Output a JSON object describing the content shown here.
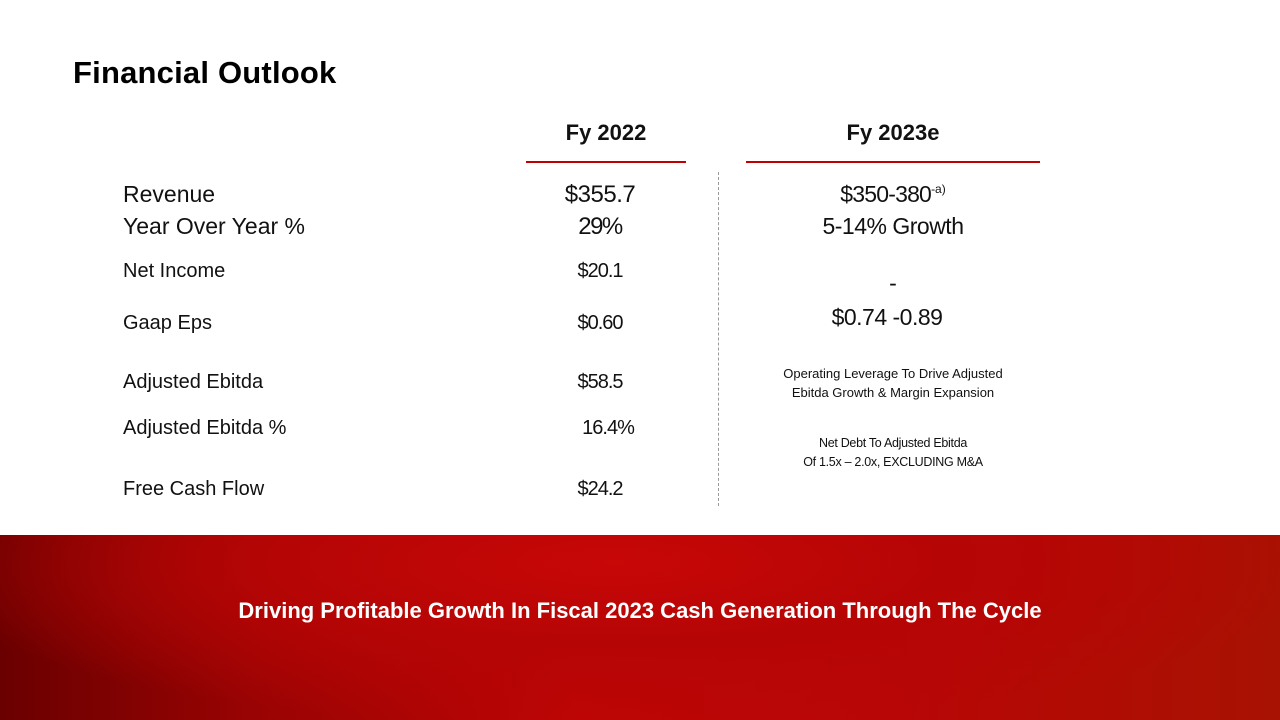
{
  "slide": {
    "title": "Financial Outlook",
    "columns": {
      "fy2022": "Fy 2022",
      "fy2023": "Fy 2023e"
    },
    "rows": [
      {
        "label": "Revenue",
        "fy2022": "$355.7"
      },
      {
        "label": "Year Over Year %",
        "fy2022": "29%"
      },
      {
        "label": "Net Income",
        "fy2022": "$20.1"
      },
      {
        "label": "Gaap Eps",
        "fy2022": "$0.60"
      },
      {
        "label": "Adjusted Ebitda",
        "fy2022": "$58.5"
      },
      {
        "label": "Adjusted Ebitda %",
        "fy2022": "16.4%"
      },
      {
        "label": "Free Cash Flow",
        "fy2022": "$24.2"
      }
    ],
    "fy2023": {
      "revenue": "$350-380",
      "revenue_note_marker": "-a)",
      "growth": "5-14% Growth",
      "net_income": "-",
      "eps": "$0.74 -0.89",
      "ebitda_note_line1": "Operating Leverage To Drive  Adjusted",
      "ebitda_note_line2": "Ebitda Growth & Margin Expansion",
      "debt_note_line1": "Net Debt To Adjusted  Ebitda",
      "debt_note_line2": "Of 1.5x – 2.0x, EXCLUDING M&A"
    },
    "banner": {
      "text": "Driving Profitable Growth In Fiscal 2023 Cash Generation Through The Cycle"
    }
  }
}
